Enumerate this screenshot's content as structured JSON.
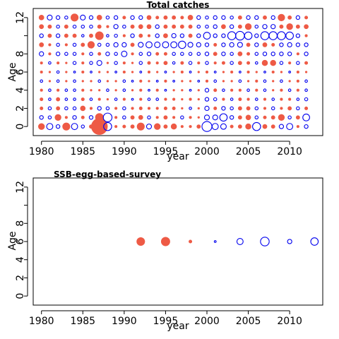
{
  "figure": {
    "background": "#ffffff"
  },
  "colors": {
    "positive": "#EE5A45",
    "negative": "#0000EE",
    "frame": "#000000"
  },
  "chart_data": [
    {
      "type": "scatter",
      "title": "Total catches",
      "xlabel": "year",
      "ylabel": "Age",
      "xlim": [
        1979,
        2014
      ],
      "ylim": [
        -1,
        13
      ],
      "x_ticks": [
        1980,
        1985,
        1990,
        1995,
        2000,
        2005,
        2010
      ],
      "y_ticks": [
        0,
        2,
        4,
        6,
        8,
        10,
        12
      ],
      "y_tick_labels": [
        "0",
        "2",
        "4",
        "6",
        "8",
        "",
        "12"
      ],
      "grid": false,
      "legend": "none",
      "years": [
        1980,
        1981,
        1982,
        1983,
        1984,
        1985,
        1986,
        1987,
        1988,
        1989,
        1990,
        1991,
        1992,
        1993,
        1994,
        1995,
        1996,
        1997,
        1998,
        1999,
        2000,
        2001,
        2002,
        2003,
        2004,
        2005,
        2006,
        2007,
        2008,
        2009,
        2010,
        2011,
        2012
      ],
      "ages": [
        0,
        1,
        2,
        3,
        4,
        5,
        6,
        7,
        8,
        9,
        10,
        11,
        12
      ],
      "residual_matrix_by_age": [
        [
          1.0,
          -1.0,
          -0.6,
          1.2,
          -1.0,
          -0.5,
          0.6,
          2.6,
          -1.3,
          0.4,
          0.5,
          0.6,
          1.2,
          -0.8,
          1.0,
          0.6,
          0.9,
          0.4,
          0.4,
          0.6,
          -1.6,
          -1.0,
          -0.9,
          0.5,
          0.6,
          0.9,
          -1.3,
          0.7,
          0.6,
          -0.7,
          -1.0,
          0.4,
          -0.6
        ],
        [
          -0.6,
          -0.5,
          1.0,
          0.4,
          -0.6,
          0.5,
          -0.6,
          1.3,
          -1.4,
          0.4,
          -0.5,
          0.6,
          0.7,
          -0.5,
          0.4,
          0.6,
          0.4,
          -0.5,
          0.4,
          0.3,
          -0.8,
          -0.8,
          -1.2,
          -0.6,
          0.6,
          0.8,
          -0.5,
          0.5,
          0.6,
          1.0,
          -0.5,
          0.6,
          -1.1
        ],
        [
          0.5,
          -0.5,
          0.6,
          -0.5,
          -0.5,
          0.8,
          0.4,
          -0.6,
          -0.5,
          0.4,
          -0.5,
          0.4,
          0.5,
          0.4,
          0.4,
          0.5,
          0.5,
          0.3,
          -0.4,
          0.3,
          -0.7,
          0.5,
          -0.6,
          -0.5,
          0.6,
          0.6,
          -0.5,
          0.4,
          -0.5,
          0.4,
          0.6,
          -0.5,
          0.5
        ],
        [
          0.5,
          -0.4,
          0.6,
          -0.4,
          -0.4,
          0.5,
          -0.4,
          0.4,
          0.3,
          -0.4,
          0.4,
          -0.3,
          0.4,
          -0.4,
          -0.4,
          0.4,
          0.4,
          0.3,
          0.4,
          0.3,
          -0.6,
          -0.5,
          0.4,
          -0.4,
          0.5,
          0.4,
          -0.4,
          0.4,
          -0.4,
          0.4,
          0.4,
          -0.4,
          -0.5
        ],
        [
          0.4,
          -0.4,
          0.4,
          -0.4,
          -0.4,
          0.4,
          0.3,
          0.3,
          -0.4,
          0.3,
          -0.4,
          0.3,
          0.4,
          -0.3,
          0.4,
          -0.3,
          0.3,
          0.3,
          -0.3,
          0.3,
          -0.6,
          0.5,
          -0.4,
          0.4,
          0.4,
          -0.4,
          0.4,
          -0.4,
          0.3,
          0.4,
          -0.4,
          0.4,
          -0.4
        ],
        [
          -0.4,
          0.3,
          -0.4,
          0.3,
          -0.4,
          0.3,
          0.3,
          -0.4,
          0.3,
          0.3,
          -0.4,
          -0.3,
          0.4,
          0.3,
          -0.3,
          0.4,
          -0.3,
          0.3,
          0.3,
          -0.3,
          0.4,
          -0.4,
          0.3,
          0.3,
          -0.4,
          0.3,
          0.4,
          -0.4,
          0.3,
          -0.4,
          0.3,
          0.4,
          -0.4
        ],
        [
          0.4,
          0.3,
          -0.4,
          0.3,
          -0.3,
          0.4,
          -0.3,
          0.3,
          0.3,
          -0.3,
          0.4,
          0.3,
          -0.3,
          0.4,
          0.3,
          -0.3,
          0.3,
          0.4,
          -0.3,
          0.3,
          0.4,
          -0.3,
          0.3,
          0.4,
          -0.3,
          0.4,
          0.3,
          -0.3,
          0.4,
          0.3,
          -0.3,
          0.4,
          0.3
        ],
        [
          0.4,
          -0.4,
          0.4,
          0.3,
          -0.5,
          0.4,
          -0.5,
          -0.8,
          0.3,
          -0.5,
          0.4,
          0.3,
          -0.5,
          0.5,
          0.4,
          0.6,
          -0.4,
          0.5,
          -0.5,
          0.4,
          -0.5,
          0.4,
          0.5,
          -0.5,
          0.6,
          0.5,
          -0.4,
          0.9,
          0.9,
          -0.5,
          0.4,
          -0.5,
          0.5
        ],
        [
          -0.7,
          0.4,
          -0.6,
          -0.5,
          -0.5,
          0.4,
          -0.5,
          0.5,
          -0.6,
          -0.5,
          -0.9,
          0.4,
          -0.5,
          -0.6,
          0.5,
          0.5,
          -0.5,
          -0.5,
          -0.5,
          -0.5,
          -0.6,
          0.6,
          -0.6,
          -0.5,
          0.7,
          0.5,
          -0.5,
          -0.6,
          -0.6,
          -0.6,
          -0.6,
          0.4,
          -0.6
        ],
        [
          0.7,
          0.4,
          -0.5,
          0.4,
          -0.5,
          0.6,
          1.1,
          -0.5,
          -0.5,
          -0.7,
          -0.7,
          0.6,
          -0.8,
          -1.0,
          -0.9,
          -1.0,
          -1.0,
          -1.2,
          -0.8,
          -0.7,
          -0.6,
          0.5,
          -0.6,
          -0.7,
          -0.8,
          0.6,
          -0.6,
          0.7,
          0.5,
          -0.6,
          -0.7,
          -0.6,
          -0.6
        ],
        [
          -0.6,
          0.6,
          -0.6,
          0.6,
          0.6,
          -0.4,
          0.6,
          1.3,
          -0.4,
          -0.5,
          0.4,
          -0.6,
          0.6,
          0.4,
          -0.6,
          0.7,
          -0.7,
          -0.6,
          0.6,
          -0.6,
          -1.1,
          -0.6,
          -0.6,
          -1.3,
          -1.4,
          -1.2,
          -0.6,
          -1.3,
          -1.3,
          -1.3,
          -1.2,
          -0.6,
          0.4
        ],
        [
          0.7,
          0.6,
          -0.5,
          0.6,
          -0.5,
          -0.5,
          -0.5,
          0.6,
          0.4,
          -0.7,
          -0.5,
          0.6,
          0.7,
          0.7,
          -0.6,
          0.6,
          0.6,
          0.6,
          0.6,
          -0.5,
          -0.5,
          -0.6,
          0.7,
          -0.6,
          0.6,
          1.0,
          -0.5,
          -0.7,
          -0.7,
          0.6,
          1.0,
          0.6,
          0.7
        ],
        [
          0.8,
          -0.8,
          -0.6,
          -0.5,
          1.2,
          -0.8,
          -0.6,
          0.8,
          -0.5,
          -0.6,
          0.5,
          -0.6,
          -0.6,
          0.7,
          0.5,
          0.6,
          0.6,
          0.5,
          0.8,
          -0.6,
          -0.5,
          -0.6,
          -0.6,
          -0.5,
          0.6,
          -0.6,
          -0.6,
          0.6,
          -0.6,
          1.1,
          0.6,
          -0.6,
          0.5
        ]
      ]
    },
    {
      "type": "scatter",
      "title": "SSB-egg-based-survey",
      "xlabel": "year",
      "ylabel": "Age",
      "xlim": [
        1979,
        2014
      ],
      "ylim": [
        -1,
        13
      ],
      "x_ticks": [
        1980,
        1985,
        1990,
        1995,
        2000,
        2005,
        2010
      ],
      "y_ticks": [
        0,
        2,
        4,
        6,
        8,
        10,
        12
      ],
      "y_tick_labels": [
        "0",
        "2",
        "4",
        "6",
        "8",
        "",
        "12"
      ],
      "grid": false,
      "legend": "none",
      "points": [
        {
          "year": 1992,
          "age": 6,
          "residual": 1.3
        },
        {
          "year": 1995,
          "age": 6,
          "residual": 1.4
        },
        {
          "year": 1998,
          "age": 6,
          "residual": 0.5
        },
        {
          "year": 2001,
          "age": 6,
          "residual": -0.3
        },
        {
          "year": 2004,
          "age": 6,
          "residual": -1.0
        },
        {
          "year": 2007,
          "age": 6,
          "residual": -1.4
        },
        {
          "year": 2010,
          "age": 6,
          "residual": -0.7
        },
        {
          "year": 2013,
          "age": 6,
          "residual": -1.2
        }
      ]
    }
  ]
}
